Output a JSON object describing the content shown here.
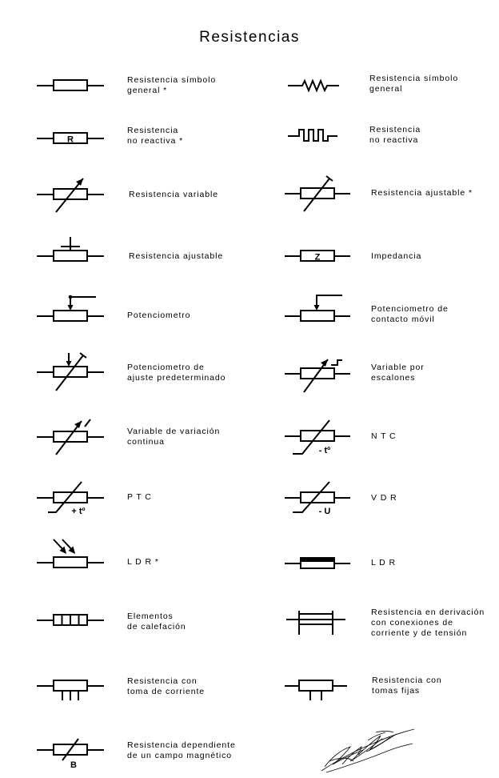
{
  "title": "Resistencias",
  "left": [
    {
      "label": "Resistencia símbolo\ngeneral *"
    },
    {
      "label": "Resistencia\nno reactiva *",
      "symbol_text": "R"
    },
    {
      "label": "Resistencia variable"
    },
    {
      "label": "Resistencia ajustable"
    },
    {
      "label": "Potenciometro"
    },
    {
      "label": "Potenciometro de\najuste predeterminado"
    },
    {
      "label": "Variable de variación\ncontinua"
    },
    {
      "label": "P T C",
      "symbol_text": "+ tº"
    },
    {
      "label": "L D R *"
    },
    {
      "label": "Elementos\nde calefación"
    },
    {
      "label": "Resistencia con\ntoma de corriente"
    },
    {
      "label": "Resistencia dependiente\nde un campo magnético",
      "symbol_text": "B"
    }
  ],
  "right": [
    {
      "label": "Resistencia símbolo\ngeneral"
    },
    {
      "label": "Resistencia\nno reactiva"
    },
    {
      "label": "Resistencia ajustable *"
    },
    {
      "label": "Impedancia",
      "symbol_text": "Z"
    },
    {
      "label": "Potenciometro de\ncontacto móvil"
    },
    {
      "label": "Variable por\nescalones"
    },
    {
      "label": "N T C",
      "symbol_text": "- tº"
    },
    {
      "label": "V D R",
      "symbol_text": "- U"
    },
    {
      "label": "L D R"
    },
    {
      "label": "Resistencia en derivación\ncon conexiones de\ncorriente y de tensión"
    },
    {
      "label": "Resistencia con\ntomas fijas"
    }
  ],
  "signature": "handwritten-signature"
}
